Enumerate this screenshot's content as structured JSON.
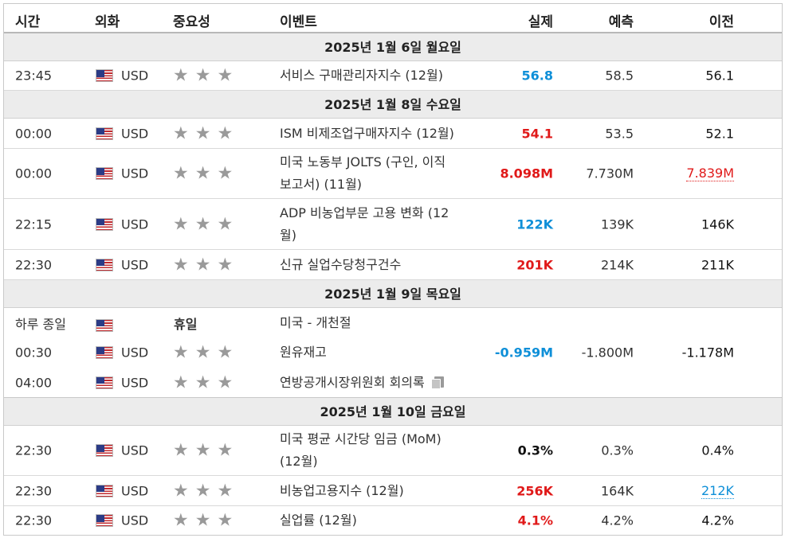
{
  "header": {
    "time": "시간",
    "currency": "외화",
    "importance": "중요성",
    "event": "이벤트",
    "actual": "실제",
    "forecast": "예측",
    "previous": "이전"
  },
  "colors": {
    "positive": "#0e8fd8",
    "negative": "#e01919",
    "date_row_bg": "#ececec"
  },
  "icons": {
    "flag": "us-flag-icon",
    "star": "star-icon",
    "document": "document-icon"
  },
  "dates": {
    "d1": "2025년 1월 6일 월요일",
    "d2": "2025년 1월 8일 수요일",
    "d3": "2025년 1월 9일 목요일",
    "d4": "2025년 1월 10일 금요일"
  },
  "rows": [
    {
      "time": "23:45",
      "currency": "USD",
      "stars": "★★★",
      "event": "서비스 구매관리자지수 (12월)",
      "actual": "56.8",
      "forecast": "58.5",
      "previous": "56.1"
    },
    {
      "time": "00:00",
      "currency": "USD",
      "stars": "★★★",
      "event": "ISM 비제조업구매자지수 (12월)",
      "actual": "54.1",
      "forecast": "53.5",
      "previous": "52.1"
    },
    {
      "time": "00:00",
      "currency": "USD",
      "stars": "★★★",
      "event_line1": "미국 노동부 JOLTS (구인, 이직",
      "event_line2": "보고서) (11월)",
      "actual": "8.098M",
      "forecast": "7.730M",
      "previous": "7.839M"
    },
    {
      "time": "22:15",
      "currency": "USD",
      "stars": "★★★",
      "event_line1": "ADP 비농업부문 고용 변화 (12",
      "event_line2": "월)",
      "actual": "122K",
      "forecast": "139K",
      "previous": "146K"
    },
    {
      "time": "22:30",
      "currency": "USD",
      "stars": "★★★",
      "event": "신규 실업수당청구건수",
      "actual": "201K",
      "forecast": "214K",
      "previous": "211K"
    },
    {
      "time": "하루 종일",
      "holiday": "휴일",
      "event": "미국 - 개천절"
    },
    {
      "time": "00:30",
      "currency": "USD",
      "stars": "★★★",
      "event": "원유재고",
      "actual": "-0.959M",
      "forecast": "-1.800M",
      "previous": "-1.178M"
    },
    {
      "time": "04:00",
      "currency": "USD",
      "stars": "★★★",
      "event": "연방공개시장위원회 회의록"
    },
    {
      "time": "22:30",
      "currency": "USD",
      "stars": "★★★",
      "event_line1": "미국 평균 시간당 임금 (MoM)",
      "event_line2": "(12월)",
      "actual": "0.3%",
      "forecast": "0.3%",
      "previous": "0.4%"
    },
    {
      "time": "22:30",
      "currency": "USD",
      "stars": "★★★",
      "event": "비농업고용지수 (12월)",
      "actual": "256K",
      "forecast": "164K",
      "previous": "212K"
    },
    {
      "time": "22:30",
      "currency": "USD",
      "stars": "★★★",
      "event": "실업률 (12월)",
      "actual": "4.1%",
      "forecast": "4.2%",
      "previous": "4.2%"
    }
  ]
}
